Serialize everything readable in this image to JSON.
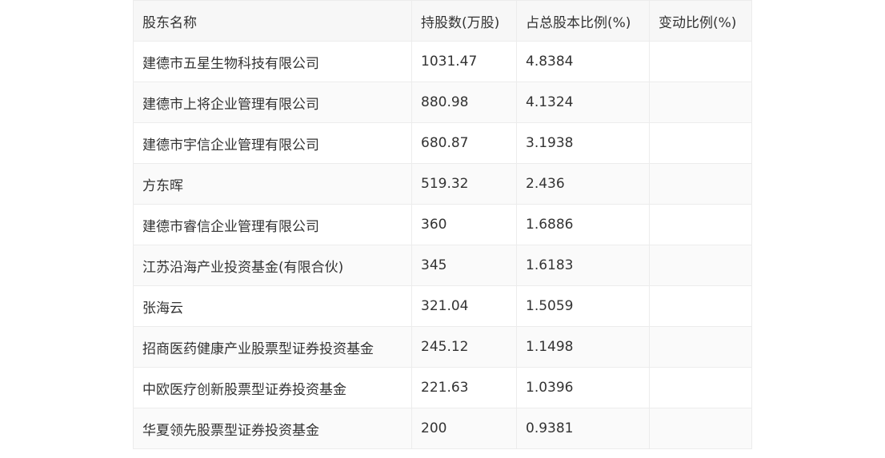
{
  "table": {
    "headers": [
      "股东名称",
      "持股数(万股)",
      "占总股本比例(%)",
      "变动比例(%)"
    ],
    "rows": [
      [
        "建德市五星生物科技有限公司",
        "1031.47",
        "4.8384",
        ""
      ],
      [
        "建德市上将企业管理有限公司",
        "880.98",
        "4.1324",
        ""
      ],
      [
        "建德市宇信企业管理有限公司",
        "680.87",
        "3.1938",
        ""
      ],
      [
        "方东晖",
        "519.32",
        "2.436",
        ""
      ],
      [
        "建德市睿信企业管理有限公司",
        "360",
        "1.6886",
        ""
      ],
      [
        "江苏沿海产业投资基金(有限合伙)",
        "345",
        "1.6183",
        ""
      ],
      [
        "张海云",
        "321.04",
        "1.5059",
        ""
      ],
      [
        "招商医药健康产业股票型证券投资基金",
        "245.12",
        "1.1498",
        ""
      ],
      [
        "中欧医疗创新股票型证券投资基金",
        "221.63",
        "1.0396",
        ""
      ],
      [
        "华夏领先股票型证券投资基金",
        "200",
        "0.9381",
        ""
      ]
    ]
  }
}
